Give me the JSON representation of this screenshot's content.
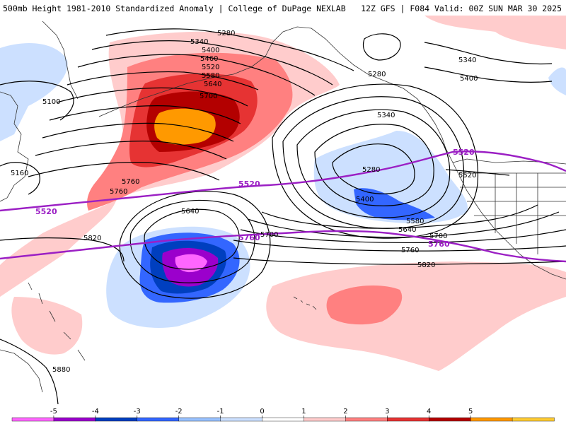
{
  "header": {
    "title_left": "500mb Height 1981-2010 Standardized Anomaly | College of DuPage NEXLAB",
    "title_right": "12Z GFS | F084 Valid: 00Z SUN MAR 30 2025"
  },
  "contour_labels": {
    "h5280_a": "5280",
    "h5340_a": "5340",
    "h5400_a": "5400",
    "h5460_a": "5460",
    "h5520_a": "5520",
    "h5580_a": "5580",
    "h5640_a": "5640",
    "h5700_a": "5700",
    "h5100": "5100",
    "h5160": "5160",
    "h5760_a": "5760",
    "h5760_b": "5760",
    "h5280_b": "5280",
    "h5340_b": "5340",
    "h5400_b": "5400",
    "h5340_c": "5340",
    "h5400_c": "5400",
    "h5280_c": "5280",
    "h5400_d": "5400",
    "h5580_b": "5580",
    "h5640_b": "5640",
    "h5700_b": "5700",
    "h5760_c": "5760",
    "h5820_a": "5820",
    "h5640_c": "5640",
    "h5700_c": "5700",
    "h5820_b": "5820",
    "h5520_b": "5520",
    "h5880": "5880"
  },
  "purple_labels": {
    "p5520_a": "5520",
    "p5520_b": "5520",
    "p5520_c": "5520",
    "p5760_a": "5760",
    "p5760_b": "5760"
  },
  "colorbar": {
    "labels": [
      "-5",
      "-4",
      "-3",
      "-2",
      "-1",
      "0",
      "1",
      "2",
      "3",
      "4",
      "5"
    ],
    "colors": [
      "#ff66ff",
      "#9b00cc",
      "#003fbf",
      "#3366ff",
      "#99c2ff",
      "#cce0ff",
      "#ffffff",
      "#ffcccc",
      "#ff8080",
      "#e63333",
      "#b30000",
      "#ff9900",
      "#ffcc33"
    ]
  },
  "colors": {
    "height_contour": "#000000",
    "reference_contour": "#9b1fc4",
    "land_outline": "#333333"
  }
}
